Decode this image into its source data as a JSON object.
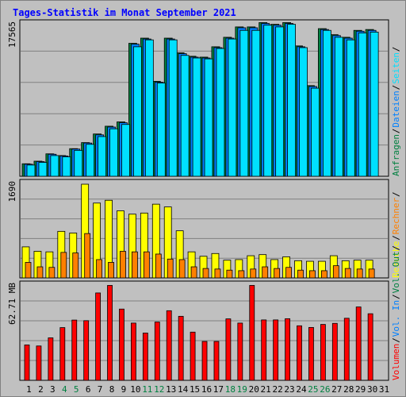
{
  "title": "Tages-Statistik im Monat September 2021",
  "colors": {
    "background": "#c0c0c0",
    "grid": "#808080",
    "hits": "#008040",
    "files": "#0080ff",
    "pages": "#00e0ff",
    "visits": "#ffff00",
    "sites": "#ff8000",
    "kbytes": "#ff0000",
    "weekend_day": "#008040",
    "weekday": "#000000"
  },
  "chart_data": [
    {
      "type": "bar",
      "panel": "top",
      "y_max_label": "17565",
      "ylim": [
        0,
        17565
      ],
      "legend": [
        "Anfragen",
        "/",
        "Dateien",
        "/",
        "Seiten",
        "/"
      ],
      "categories": [
        "1",
        "2",
        "3",
        "4",
        "5",
        "6",
        "7",
        "8",
        "9",
        "10",
        "11",
        "12",
        "13",
        "14",
        "15",
        "16",
        "17",
        "18",
        "19",
        "20",
        "21",
        "22",
        "23",
        "24",
        "25",
        "26",
        "27",
        "28",
        "29",
        "30",
        "31"
      ],
      "series": [
        {
          "name": "Anfragen",
          "values": [
            1450,
            1750,
            2600,
            2400,
            3200,
            3900,
            4900,
            5800,
            6300,
            15400,
            16000,
            11000,
            16000,
            14300,
            13900,
            13800,
            15000,
            16100,
            17300,
            17300,
            17800,
            17600,
            17800,
            15100,
            10500,
            17100,
            16400,
            16100,
            16900,
            17000,
            0
          ]
        },
        {
          "name": "Dateien",
          "values": [
            1400,
            1700,
            2550,
            2350,
            3150,
            3850,
            4800,
            5700,
            6200,
            15300,
            15900,
            10900,
            15900,
            14200,
            13800,
            13700,
            14900,
            16000,
            17200,
            17200,
            17700,
            17500,
            17700,
            15000,
            10400,
            17000,
            16300,
            16000,
            16800,
            16900,
            0
          ]
        },
        {
          "name": "Seiten",
          "values": [
            1300,
            1600,
            2400,
            2250,
            3000,
            3700,
            4600,
            5500,
            6000,
            15000,
            15800,
            10800,
            15800,
            14000,
            13700,
            13600,
            14800,
            15900,
            16900,
            16900,
            17500,
            17300,
            17600,
            14900,
            10200,
            16900,
            16100,
            15800,
            16600,
            16700,
            0
          ]
        }
      ]
    },
    {
      "type": "bar",
      "panel": "middle",
      "y_max_label": "1690",
      "ylim": [
        0,
        1690
      ],
      "legend": [
        "Besuche",
        "/",
        "Rechner",
        "/"
      ],
      "categories": [
        "1",
        "2",
        "3",
        "4",
        "5",
        "6",
        "7",
        "8",
        "9",
        "10",
        "11",
        "12",
        "13",
        "14",
        "15",
        "16",
        "17",
        "18",
        "19",
        "20",
        "21",
        "22",
        "23",
        "24",
        "25",
        "26",
        "27",
        "28",
        "29",
        "30",
        "31"
      ],
      "series": [
        {
          "name": "Besuche",
          "values": [
            560,
            480,
            470,
            840,
            810,
            1690,
            1350,
            1400,
            1210,
            1150,
            1170,
            1330,
            1280,
            850,
            470,
            390,
            440,
            320,
            330,
            400,
            420,
            330,
            380,
            310,
            300,
            300,
            400,
            310,
            320,
            320,
            0
          ]
        },
        {
          "name": "Rechner",
          "values": [
            280,
            200,
            190,
            460,
            450,
            800,
            330,
            280,
            480,
            470,
            470,
            430,
            340,
            330,
            200,
            170,
            160,
            140,
            130,
            160,
            200,
            170,
            190,
            140,
            130,
            130,
            220,
            170,
            160,
            160,
            0
          ]
        }
      ]
    },
    {
      "type": "bar",
      "panel": "bottom",
      "y_max_label": "62.71 MB",
      "ylim": [
        0,
        62.71
      ],
      "legend": [
        "Volumen",
        "/",
        "Vol. In",
        "/",
        "Vol. Out",
        "/"
      ],
      "categories": [
        "1",
        "2",
        "3",
        "4",
        "5",
        "6",
        "7",
        "8",
        "9",
        "10",
        "11",
        "12",
        "13",
        "14",
        "15",
        "16",
        "17",
        "18",
        "19",
        "20",
        "21",
        "22",
        "23",
        "24",
        "25",
        "26",
        "27",
        "28",
        "29",
        "30",
        "31"
      ],
      "series": [
        {
          "name": "Volumen",
          "values": [
            23.5,
            22.8,
            28.2,
            35.0,
            40.0,
            39.6,
            58.0,
            63.0,
            47.3,
            38.0,
            31.4,
            38.7,
            46.2,
            42.5,
            32.0,
            25.8,
            25.8,
            40.8,
            38.0,
            63.0,
            40.1,
            40.1,
            40.9,
            36.2,
            35.1,
            37.1,
            37.8,
            41.2,
            48.7,
            44.2,
            0
          ]
        }
      ]
    }
  ],
  "days": [
    {
      "label": "1",
      "weekend": false
    },
    {
      "label": "2",
      "weekend": false
    },
    {
      "label": "3",
      "weekend": false
    },
    {
      "label": "4",
      "weekend": true
    },
    {
      "label": "5",
      "weekend": true
    },
    {
      "label": "6",
      "weekend": false
    },
    {
      "label": "7",
      "weekend": false
    },
    {
      "label": "8",
      "weekend": false
    },
    {
      "label": "9",
      "weekend": false
    },
    {
      "label": "10",
      "weekend": false
    },
    {
      "label": "11",
      "weekend": true
    },
    {
      "label": "12",
      "weekend": true
    },
    {
      "label": "13",
      "weekend": false
    },
    {
      "label": "14",
      "weekend": false
    },
    {
      "label": "15",
      "weekend": false
    },
    {
      "label": "16",
      "weekend": false
    },
    {
      "label": "17",
      "weekend": false
    },
    {
      "label": "18",
      "weekend": true
    },
    {
      "label": "19",
      "weekend": true
    },
    {
      "label": "20",
      "weekend": false
    },
    {
      "label": "21",
      "weekend": false
    },
    {
      "label": "22",
      "weekend": false
    },
    {
      "label": "23",
      "weekend": false
    },
    {
      "label": "24",
      "weekend": false
    },
    {
      "label": "25",
      "weekend": true
    },
    {
      "label": "26",
      "weekend": true
    },
    {
      "label": "27",
      "weekend": false
    },
    {
      "label": "28",
      "weekend": false
    },
    {
      "label": "29",
      "weekend": false
    },
    {
      "label": "30",
      "weekend": false
    },
    {
      "label": "31",
      "weekend": false
    }
  ]
}
